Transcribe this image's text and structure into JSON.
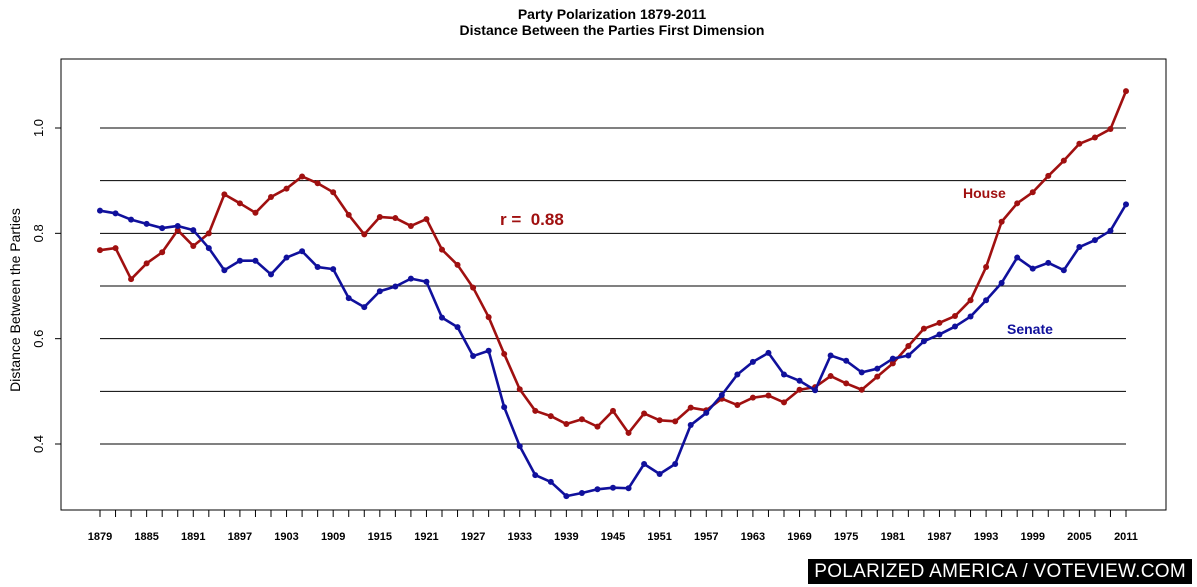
{
  "chart_data": {
    "type": "line",
    "title": "Party Polarization 1879-2011",
    "subtitle": "Distance Between the Parties First Dimension",
    "xlabel": "",
    "ylabel": "Distance Between the Parties",
    "xlim": [
      1879,
      2011
    ],
    "ylim": [
      0.28,
      1.12
    ],
    "yticks": [
      0.4,
      0.6,
      0.8,
      1.0
    ],
    "ytick_labels": [
      "0.4",
      "0.6",
      "0.8",
      "1.0"
    ],
    "gridlines_y": [
      0.4,
      0.5,
      0.6,
      0.7,
      0.8,
      0.9,
      1.0
    ],
    "x_tick_labels": [
      "1879",
      "1885",
      "1891",
      "1897",
      "1903",
      "1909",
      "1915",
      "1921",
      "1927",
      "1933",
      "1939",
      "1945",
      "1951",
      "1957",
      "1963",
      "1969",
      "1975",
      "1981",
      "1987",
      "1993",
      "1999",
      "2005",
      "2011"
    ],
    "x": [
      1879,
      1881,
      1883,
      1885,
      1887,
      1889,
      1891,
      1893,
      1895,
      1897,
      1899,
      1901,
      1903,
      1905,
      1907,
      1909,
      1911,
      1913,
      1915,
      1917,
      1919,
      1921,
      1923,
      1925,
      1927,
      1929,
      1931,
      1933,
      1935,
      1937,
      1939,
      1941,
      1943,
      1945,
      1947,
      1949,
      1951,
      1953,
      1955,
      1957,
      1959,
      1961,
      1963,
      1965,
      1967,
      1969,
      1971,
      1973,
      1975,
      1977,
      1979,
      1981,
      1983,
      1985,
      1987,
      1989,
      1991,
      1993,
      1995,
      1997,
      1999,
      2001,
      2003,
      2005,
      2007,
      2009,
      2011
    ],
    "series": [
      {
        "name": "House",
        "color": "#a01010",
        "values": [
          0.768,
          0.772,
          0.713,
          0.743,
          0.764,
          0.806,
          0.776,
          0.8,
          0.874,
          0.857,
          0.839,
          0.869,
          0.885,
          0.908,
          0.895,
          0.878,
          0.835,
          0.798,
          0.831,
          0.829,
          0.814,
          0.827,
          0.769,
          0.74,
          0.697,
          0.641,
          0.571,
          0.504,
          0.463,
          0.453,
          0.438,
          0.447,
          0.433,
          0.463,
          0.421,
          0.458,
          0.445,
          0.443,
          0.469,
          0.464,
          0.486,
          0.474,
          0.488,
          0.492,
          0.479,
          0.503,
          0.508,
          0.529,
          0.515,
          0.503,
          0.528,
          0.553,
          0.586,
          0.619,
          0.63,
          0.643,
          0.673,
          0.736,
          0.822,
          0.857,
          0.878,
          0.909,
          0.938,
          0.97,
          0.982,
          0.998,
          1.07
        ]
      },
      {
        "name": "Senate",
        "color": "#10109c",
        "values": [
          0.843,
          0.838,
          0.826,
          0.818,
          0.81,
          0.814,
          0.806,
          0.772,
          0.73,
          0.748,
          0.748,
          0.722,
          0.754,
          0.766,
          0.736,
          0.732,
          0.677,
          0.66,
          0.69,
          0.699,
          0.714,
          0.708,
          0.64,
          0.622,
          0.567,
          0.577,
          0.47,
          0.396,
          0.341,
          0.328,
          0.301,
          0.307,
          0.314,
          0.317,
          0.316,
          0.362,
          0.343,
          0.362,
          0.436,
          0.459,
          0.493,
          0.532,
          0.556,
          0.573,
          0.532,
          0.52,
          0.502,
          0.568,
          0.558,
          0.536,
          0.543,
          0.562,
          0.568,
          0.595,
          0.608,
          0.623,
          0.642,
          0.673,
          0.706,
          0.754,
          0.733,
          0.744,
          0.73,
          0.774,
          0.787,
          0.805,
          0.855
        ]
      }
    ],
    "annotations": [
      {
        "text": "House",
        "series": "House"
      },
      {
        "text": "Senate",
        "series": "Senate"
      },
      {
        "text": "r =  0.88",
        "series": "House"
      }
    ]
  },
  "footer": {
    "text": "POLARIZED AMERICA / VOTEVIEW.COM"
  }
}
